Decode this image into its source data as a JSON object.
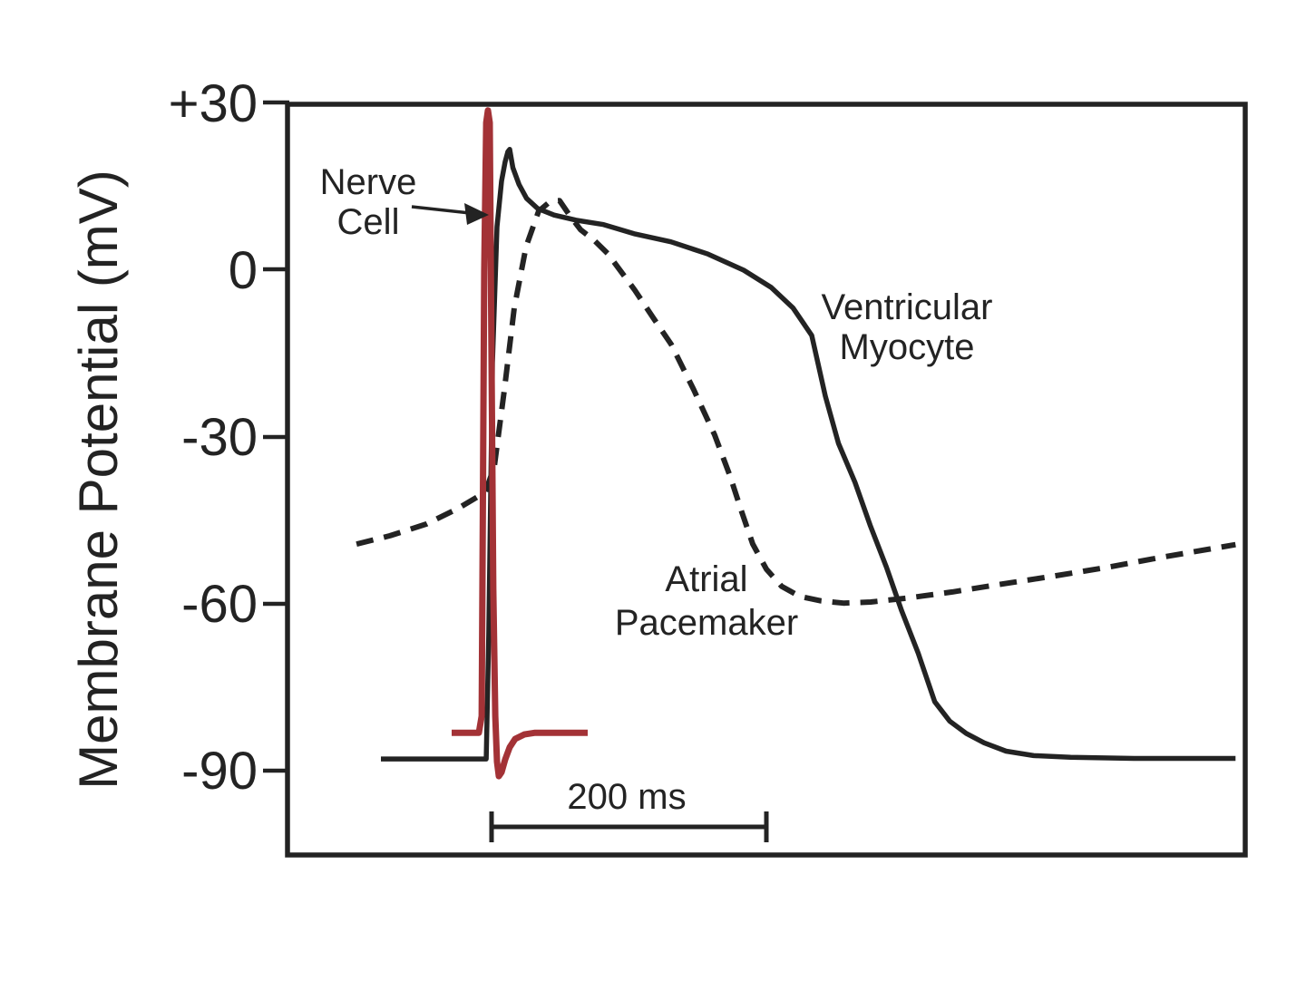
{
  "chart_data": {
    "type": "line",
    "title": "",
    "xlabel": "",
    "ylabel": "Membrane Potential (mV)",
    "x_unit": "ms",
    "ylim": [
      -105,
      33
    ],
    "grid": false,
    "legend_position": "inline-annotations",
    "y_axis": {
      "ticks": [
        {
          "label": "+30",
          "value": 30
        },
        {
          "label": "0",
          "value": 0
        },
        {
          "label": "-30",
          "value": -30
        },
        {
          "label": "-60",
          "value": -60
        },
        {
          "label": "-90",
          "value": -90
        }
      ]
    },
    "scale_bar": {
      "label": "200 ms",
      "length_ms": 200
    },
    "colors": {
      "trace_black": "#232323",
      "trace_red": "#a33236",
      "frame": "#232323"
    },
    "series": [
      {
        "id": "atrial-pacemaker",
        "name": "Atrial Pacemaker",
        "style": "dashed",
        "color": "#232323",
        "stroke_width": 6,
        "points": [
          [
            50.2,
            -49.3
          ],
          [
            74.6,
            -47.8
          ],
          [
            101,
            -45.7
          ],
          [
            124.1,
            -42.9
          ],
          [
            143.9,
            -40
          ],
          [
            150.5,
            -35.4
          ],
          [
            157.8,
            -21.6
          ],
          [
            165,
            -6.9
          ],
          [
            173.6,
            4.1
          ],
          [
            182.8,
            10.5
          ],
          [
            191.4,
            12.3
          ],
          [
            198,
            12.4
          ],
          [
            204.6,
            10
          ],
          [
            213.2,
            7.2
          ],
          [
            223.1,
            5.3
          ],
          [
            233,
            2.9
          ],
          [
            252.8,
            -3.7
          ],
          [
            266,
            -8.6
          ],
          [
            279.2,
            -13.4
          ],
          [
            295.7,
            -21.6
          ],
          [
            310.9,
            -29.7
          ],
          [
            322.1,
            -37.1
          ],
          [
            330.7,
            -43.6
          ],
          [
            338.6,
            -49.3
          ],
          [
            348.5,
            -53.8
          ],
          [
            359.7,
            -56.9
          ],
          [
            372.9,
            -58.7
          ],
          [
            388.1,
            -59.5
          ],
          [
            404.6,
            -59.9
          ],
          [
            424.4,
            -59.7
          ],
          [
            450.8,
            -59
          ],
          [
            483.8,
            -57.9
          ],
          [
            516.8,
            -56.6
          ],
          [
            556.4,
            -55.1
          ],
          [
            596,
            -53.5
          ],
          [
            635.6,
            -51.7
          ],
          [
            690,
            -49.4
          ]
        ]
      },
      {
        "id": "ventricular-myocyte",
        "name": "Ventricular Myocyte",
        "style": "solid",
        "color": "#232323",
        "stroke_width": 5.5,
        "points": [
          [
            68,
            -87.9
          ],
          [
            144.6,
            -87.9
          ],
          [
            146.5,
            -65.5
          ],
          [
            149.2,
            -16.7
          ],
          [
            152.5,
            7.7
          ],
          [
            155.8,
            15.9
          ],
          [
            158.4,
            19.4
          ],
          [
            160.4,
            21.2
          ],
          [
            161.7,
            21.6
          ],
          [
            164,
            18.3
          ],
          [
            168.5,
            15.3
          ],
          [
            174,
            12.8
          ],
          [
            182,
            11
          ],
          [
            194,
            9.8
          ],
          [
            210,
            8.9
          ],
          [
            230,
            8.1
          ],
          [
            253,
            6.4
          ],
          [
            279,
            5
          ],
          [
            306,
            2.8
          ],
          [
            332,
            -0.1
          ],
          [
            352,
            -3.2
          ],
          [
            368,
            -6.9
          ],
          [
            381.5,
            -11.8
          ],
          [
            391.4,
            -22.7
          ],
          [
            401,
            -31.2
          ],
          [
            413,
            -38.2
          ],
          [
            424,
            -45.9
          ],
          [
            436,
            -53.5
          ],
          [
            447,
            -61.3
          ],
          [
            459,
            -68.9
          ],
          [
            471,
            -77.6
          ],
          [
            482,
            -81.1
          ],
          [
            494,
            -83.3
          ],
          [
            507,
            -85
          ],
          [
            523,
            -86.5
          ],
          [
            543,
            -87.3
          ],
          [
            570,
            -87.6
          ],
          [
            616,
            -87.8
          ],
          [
            690,
            -87.8
          ]
        ]
      },
      {
        "id": "nerve-cell",
        "name": "Nerve Cell",
        "style": "solid",
        "color": "#a33236",
        "stroke_width": 7,
        "points": [
          [
            119.5,
            -83.2
          ],
          [
            139.3,
            -83.2
          ],
          [
            141.3,
            -80.2
          ],
          [
            143.2,
            -0.4
          ],
          [
            144.6,
            26.4
          ],
          [
            145.9,
            28.6
          ],
          [
            147.2,
            26.4
          ],
          [
            148.5,
            -16.7
          ],
          [
            149.8,
            -57.4
          ],
          [
            151.2,
            -80.2
          ],
          [
            152.5,
            -88.4
          ],
          [
            153.8,
            -91
          ],
          [
            155.8,
            -90.3
          ],
          [
            158.4,
            -88
          ],
          [
            161.7,
            -85.8
          ],
          [
            165.7,
            -84.3
          ],
          [
            172.3,
            -83.5
          ],
          [
            180.2,
            -83.2
          ],
          [
            218.5,
            -83.2
          ]
        ]
      }
    ],
    "annotations": {
      "nerve_cell": {
        "lines": [
          "Nerve",
          "Cell"
        ]
      },
      "ventricular_myocyte": {
        "lines": [
          "Ventricular",
          "Myocyte"
        ]
      },
      "atrial_pacemaker": {
        "lines": [
          "Atrial",
          "Pacemaker"
        ]
      }
    }
  }
}
